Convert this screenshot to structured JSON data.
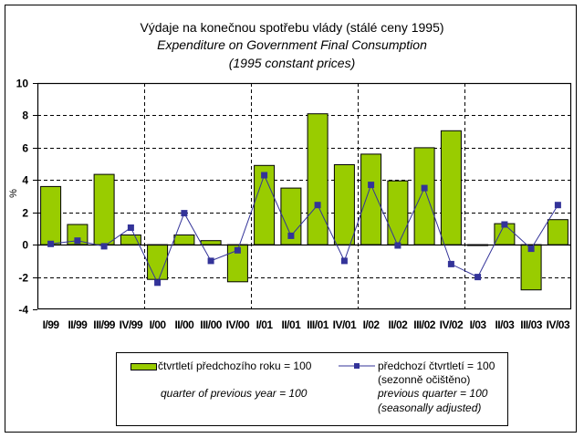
{
  "chart_data": {
    "type": "bar",
    "title": "Výdaje na konečnou spotřebu vlády (stálé ceny 1995)",
    "subtitle_en": "Expenditure on Government Final Consumption",
    "subtitle_en2": "(1995 constant prices)",
    "xlabel": "",
    "ylabel": "%",
    "ylim": [
      -4,
      10
    ],
    "yticks": [
      10,
      8,
      6,
      4,
      2,
      0,
      -2,
      -4
    ],
    "grid": true,
    "legend_position": "bottom",
    "categories": [
      "I/99",
      "II/99",
      "III/99",
      "IV/99",
      "I/00",
      "II/00",
      "III/00",
      "IV/00",
      "I/01",
      "II/01",
      "III/01",
      "IV/01",
      "I/02",
      "II/02",
      "III/02",
      "IV/02",
      "I/03",
      "II/03",
      "III/03",
      "IV/03"
    ],
    "series": [
      {
        "name": "čtvrtletí předchozího roku = 100",
        "name_en": "quarter of previous year = 100",
        "type": "bar",
        "color": "#99CC00",
        "values": [
          3.6,
          1.25,
          4.35,
          0.6,
          -2.15,
          0.6,
          0.25,
          -2.3,
          4.9,
          3.5,
          8.1,
          4.95,
          5.6,
          3.95,
          6.0,
          7.05,
          -0.05,
          1.3,
          -2.8,
          1.55
        ]
      },
      {
        "name": "předchozí čtvrtletí = 100",
        "name2": "(sezonně očištěno)",
        "name_en": "previous quarter = 100",
        "name_en2": "(seasonally adjusted)",
        "type": "line",
        "color": "#333399",
        "values": [
          0.05,
          0.25,
          -0.1,
          1.05,
          -2.35,
          1.95,
          -1.0,
          -0.35,
          4.3,
          0.55,
          2.45,
          -1.0,
          3.7,
          -0.05,
          3.5,
          -1.2,
          -2.0,
          1.25,
          -0.25,
          2.45
        ]
      }
    ]
  }
}
